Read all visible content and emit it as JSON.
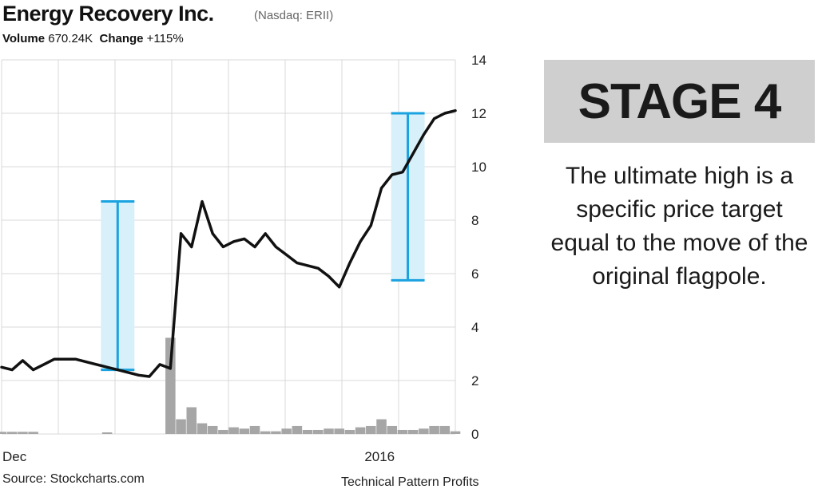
{
  "header": {
    "title": "Energy Recovery Inc.",
    "ticker": "(Nasdaq: ERII)",
    "volume_label": "Volume",
    "volume_value": "670.24K",
    "change_label": "Change",
    "change_value": "+115%"
  },
  "footer": {
    "source": "Source: Stockcharts.com",
    "credit": "Technical Pattern Profits"
  },
  "panel": {
    "stage": "STAGE 4",
    "description": "The ultimate high is a specific price target equal to the move of the original flagpole."
  },
  "colors": {
    "price_line": "#111111",
    "volume_bars": "#a6a6a6",
    "highlight_fill": "#d8f0fa",
    "highlight_stroke": "#1aa3e0",
    "grid": "#d9d9d9",
    "stage_box": "#cfcfcf"
  },
  "chart_data": {
    "type": "line",
    "title": "Energy Recovery Inc.",
    "ylim": [
      0,
      14
    ],
    "yticks": [
      0,
      2,
      4,
      6,
      8,
      10,
      12,
      14
    ],
    "x_tick_labels": [
      {
        "label": "Dec",
        "index": 0
      },
      {
        "label": "2016",
        "index": 35
      }
    ],
    "grid": true,
    "y_axis_side": "right",
    "price": {
      "name": "Price",
      "values": [
        2.5,
        2.4,
        2.75,
        2.4,
        2.6,
        2.8,
        2.8,
        2.8,
        2.7,
        2.6,
        2.5,
        2.4,
        2.3,
        2.2,
        2.15,
        2.6,
        2.45,
        7.5,
        7.0,
        8.7,
        7.5,
        7.0,
        7.2,
        7.3,
        7.0,
        7.5,
        7.0,
        6.7,
        6.4,
        6.3,
        6.2,
        5.9,
        5.5,
        6.4,
        7.2,
        7.8,
        9.2,
        9.7,
        9.8,
        10.5,
        11.2,
        11.8,
        12.0,
        12.1
      ]
    },
    "volume": {
      "name": "Volume",
      "values": [
        0.08,
        0.08,
        0.08,
        0.08,
        0,
        0,
        0,
        0,
        0,
        0,
        0.06,
        0,
        0,
        0,
        0,
        0,
        3.6,
        0.55,
        1.0,
        0.4,
        0.3,
        0.15,
        0.25,
        0.2,
        0.3,
        0.1,
        0.1,
        0.2,
        0.3,
        0.15,
        0.15,
        0.2,
        0.2,
        0.15,
        0.25,
        0.3,
        0.55,
        0.3,
        0.15,
        0.15,
        0.2,
        0.3,
        0.3,
        0.1
      ]
    },
    "flagpole_ranges": [
      {
        "index": 11,
        "low": 2.4,
        "high": 8.7
      },
      {
        "index": 38.5,
        "low": 5.75,
        "high": 12.0
      }
    ]
  }
}
